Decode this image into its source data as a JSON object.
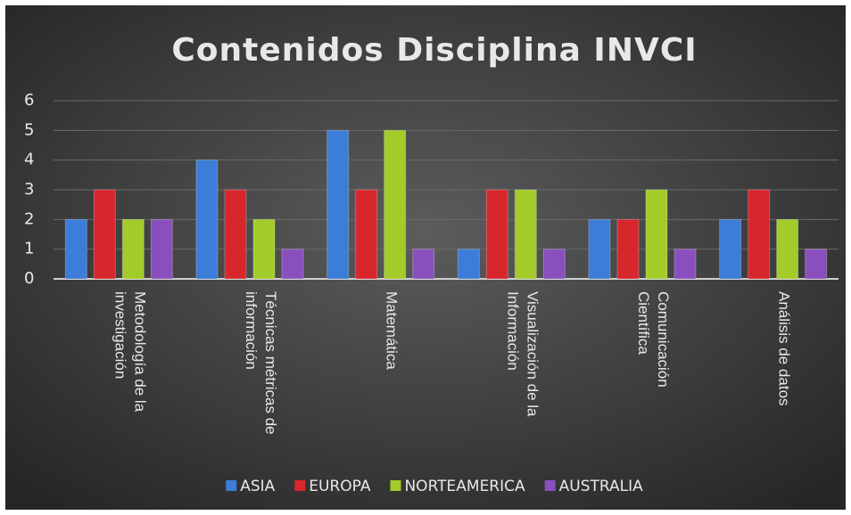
{
  "chart_data": {
    "type": "bar",
    "title": "Contenidos Disciplina INVCI",
    "categories": [
      "Metodología de la investigación",
      "Técnicas métricas de información",
      "Matemática",
      "Visualización de la Información",
      "Comunicación Científica",
      "Análisis de datos"
    ],
    "series": [
      {
        "name": "ASIA",
        "color": "#3b7dd8",
        "values": [
          2,
          4,
          5,
          1,
          2,
          2
        ]
      },
      {
        "name": "EUROPA",
        "color": "#d8262d",
        "values": [
          3,
          3,
          3,
          3,
          2,
          3
        ]
      },
      {
        "name": "NORTEAMERICA",
        "color": "#a3cc2a",
        "values": [
          2,
          2,
          5,
          3,
          3,
          2
        ]
      },
      {
        "name": "AUSTRALIA",
        "color": "#8a4fbf",
        "values": [
          2,
          1,
          1,
          1,
          1,
          1
        ]
      }
    ],
    "ylim": [
      0,
      6
    ],
    "yticks": [
      0,
      1,
      2,
      3,
      4,
      5,
      6
    ],
    "grid": true,
    "legend": "bottom"
  }
}
